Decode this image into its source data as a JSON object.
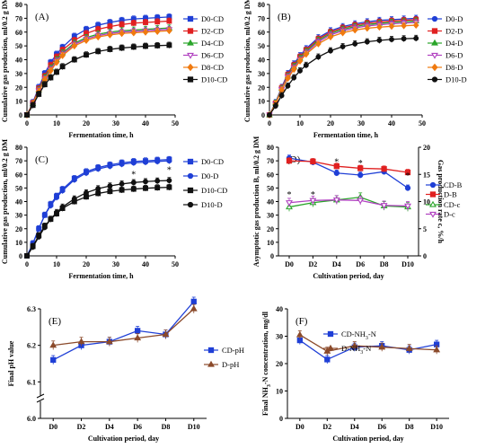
{
  "chart_data": [
    {
      "type": "line",
      "panel": "(A)",
      "xlabel": "Fermentation time, h",
      "ylabel": "Cumulative gas production, ml/0.2 g DM",
      "xlim": [
        0,
        50
      ],
      "ylim": [
        0,
        80
      ],
      "xticks": [
        0,
        10,
        20,
        30,
        40,
        50
      ],
      "yticks": [
        0,
        10,
        20,
        30,
        40,
        50,
        60,
        70,
        80
      ],
      "x": [
        0,
        2,
        4,
        6,
        8,
        10,
        12,
        16,
        20,
        24,
        28,
        32,
        36,
        40,
        44,
        48
      ],
      "legend_position": "right",
      "series": [
        {
          "name": "D0-CD",
          "color": "#1f3fd6",
          "marker": "square",
          "filled": true,
          "values": [
            0,
            9,
            20,
            30,
            38,
            44,
            49,
            57,
            62,
            65,
            67,
            68.5,
            69.5,
            70,
            70.5,
            71
          ]
        },
        {
          "name": "D2-CD",
          "color": "#e02020",
          "marker": "square",
          "filled": true,
          "values": [
            0,
            8.5,
            19,
            28,
            36,
            42,
            47,
            54,
            59,
            62,
            64,
            65.5,
            66.5,
            67,
            67.5,
            68
          ]
        },
        {
          "name": "D4-CD",
          "color": "#2aa52a",
          "marker": "triangle",
          "filled": true,
          "values": [
            0,
            8,
            18,
            27,
            34,
            40,
            45,
            52,
            56,
            58.5,
            60,
            61,
            61.5,
            62,
            62.5,
            63
          ]
        },
        {
          "name": "D6-CD",
          "color": "#b040c0",
          "marker": "triangle-down",
          "filled": false,
          "values": [
            0,
            8,
            17.5,
            26,
            33,
            39,
            44,
            51,
            55,
            57.5,
            59,
            60,
            60.5,
            61,
            61.5,
            62
          ]
        },
        {
          "name": "D8-CD",
          "color": "#f07a10",
          "marker": "diamond",
          "filled": true,
          "values": [
            0,
            8,
            17,
            25.5,
            32,
            38,
            43,
            50,
            54,
            56.5,
            58,
            59,
            59.5,
            60,
            60.5,
            61
          ]
        },
        {
          "name": "D10-CD",
          "color": "#111111",
          "marker": "square",
          "filled": true,
          "values": [
            0,
            7,
            15,
            22,
            27,
            31,
            35,
            40,
            43.5,
            46,
            47.5,
            48.5,
            49.2,
            49.8,
            50.2,
            50.5
          ]
        }
      ]
    },
    {
      "type": "line",
      "panel": "(B)",
      "xlabel": "Fermentation time, h",
      "ylabel": "Cumulative gas production, ml/0.2 g DM",
      "xlim": [
        0,
        50
      ],
      "ylim": [
        0,
        80
      ],
      "xticks": [
        0,
        10,
        20,
        30,
        40,
        50
      ],
      "yticks": [
        0,
        10,
        20,
        30,
        40,
        50,
        60,
        70,
        80
      ],
      "x": [
        0,
        2,
        4,
        6,
        8,
        10,
        12,
        16,
        20,
        24,
        28,
        32,
        36,
        40,
        44,
        48
      ],
      "legend_position": "right",
      "series": [
        {
          "name": "D0-D",
          "color": "#1f3fd6",
          "marker": "circle",
          "filled": true,
          "values": [
            0,
            9,
            20,
            30,
            37,
            43,
            48,
            56,
            61,
            64,
            66,
            67.5,
            68.5,
            69,
            69.5,
            70
          ]
        },
        {
          "name": "D2-D",
          "color": "#e02020",
          "marker": "square",
          "filled": true,
          "values": [
            0,
            8.5,
            19.5,
            29,
            36,
            42,
            47,
            55,
            60,
            63,
            65,
            66.5,
            67.3,
            68,
            68.5,
            69
          ]
        },
        {
          "name": "D4-D",
          "color": "#2aa52a",
          "marker": "triangle",
          "filled": true,
          "values": [
            0,
            8.5,
            19,
            28,
            35,
            41,
            46,
            54,
            59,
            62,
            64,
            65.5,
            66.3,
            67,
            67.5,
            68
          ]
        },
        {
          "name": "D6-D",
          "color": "#b040c0",
          "marker": "triangle-down",
          "filled": false,
          "values": [
            0,
            8,
            18.5,
            27.5,
            34,
            40,
            45,
            53,
            58,
            61,
            63,
            64.5,
            65.3,
            66,
            66.5,
            67
          ]
        },
        {
          "name": "D8-D",
          "color": "#f07a10",
          "marker": "diamond",
          "filled": true,
          "values": [
            0,
            8,
            18,
            26.5,
            33,
            39,
            44,
            51.5,
            56.5,
            59.5,
            61.5,
            62.8,
            63.6,
            64.2,
            64.6,
            65
          ]
        },
        {
          "name": "D10-D",
          "color": "#111111",
          "marker": "circle",
          "filled": true,
          "values": [
            0,
            6.5,
            14,
            21,
            27,
            32,
            36,
            42,
            46.5,
            49.5,
            51.5,
            53,
            54,
            54.7,
            55.2,
            55.5
          ]
        }
      ]
    },
    {
      "type": "line",
      "panel": "(C)",
      "xlabel": "Fermentation time, h",
      "ylabel": "Cumulative gas production, ml/0.2 g DM",
      "xlim": [
        0,
        50
      ],
      "ylim": [
        0,
        80
      ],
      "xticks": [
        0,
        10,
        20,
        30,
        40,
        50
      ],
      "yticks": [
        0,
        10,
        20,
        30,
        40,
        50,
        60,
        70,
        80
      ],
      "x": [
        0,
        2,
        4,
        6,
        8,
        10,
        12,
        16,
        20,
        24,
        28,
        32,
        36,
        40,
        44,
        48
      ],
      "legend_position": "right",
      "annotations": [
        {
          "text": "*",
          "x": 36,
          "y": 58
        },
        {
          "text": "*",
          "x": 48,
          "y": 61
        }
      ],
      "series": [
        {
          "name": "D0-CD",
          "color": "#1f3fd6",
          "marker": "square",
          "filled": true,
          "values": [
            0,
            9,
            20,
            30,
            38,
            44,
            49,
            57,
            62,
            65,
            67,
            68.5,
            69.5,
            70,
            70.5,
            71
          ]
        },
        {
          "name": "D0-D",
          "color": "#1f3fd6",
          "marker": "circle",
          "filled": true,
          "values": [
            0,
            9,
            20,
            30,
            37,
            43,
            48,
            56,
            61,
            64,
            66,
            67.5,
            68.5,
            69,
            69.5,
            70
          ]
        },
        {
          "name": "D10-CD",
          "color": "#111111",
          "marker": "square",
          "filled": true,
          "values": [
            0,
            7,
            15,
            22,
            27,
            31,
            35,
            40,
            43.5,
            46,
            47.5,
            48.5,
            49.2,
            49.8,
            50.2,
            50.5
          ]
        },
        {
          "name": "D10-D",
          "color": "#111111",
          "marker": "circle",
          "filled": true,
          "values": [
            0,
            6.5,
            14,
            21,
            27,
            32,
            36,
            42,
            46.5,
            49.5,
            51.5,
            53,
            54,
            54.7,
            55.2,
            55.5
          ]
        }
      ]
    },
    {
      "type": "line",
      "panel": "(D)",
      "xlabel": "Cultivation period, day",
      "ylabel": "Asymptotic gas production B, ml/0.2 g DM",
      "ylabel_right": "Gas production rate c, %/h",
      "categories": [
        "D0",
        "D2",
        "D4",
        "D6",
        "D8",
        "D10"
      ],
      "ylim": [
        0,
        80
      ],
      "yticks": [
        0,
        10,
        20,
        30,
        40,
        50,
        60,
        70,
        80
      ],
      "ylim_right": [
        0,
        20
      ],
      "yticks_right": [
        0,
        5,
        10,
        15,
        20
      ],
      "legend_position": "right",
      "annotations": [
        {
          "text": "*",
          "x": "D4",
          "y": 67
        },
        {
          "text": "*",
          "x": "D6",
          "y": 66
        },
        {
          "text": "*",
          "x": "D10",
          "y": 57
        },
        {
          "text": "*",
          "x": "D0",
          "y": 43
        },
        {
          "text": "*",
          "x": "D2",
          "y": 43
        }
      ],
      "series": [
        {
          "name": "CD-B",
          "axis": "left",
          "color": "#1f3fd6",
          "marker": "circle",
          "filled": true,
          "values": [
            72,
            69,
            61,
            59.5,
            62,
            50
          ]
        },
        {
          "name": "D-B",
          "axis": "left",
          "color": "#e02020",
          "marker": "square",
          "filled": true,
          "values": [
            70,
            69.5,
            66,
            64.5,
            64,
            61.5
          ]
        },
        {
          "name": "CD-c",
          "axis": "right",
          "color": "#2aa52a",
          "marker": "triangle",
          "filled": false,
          "values": [
            9,
            9.8,
            10.3,
            10.8,
            9.2,
            9
          ]
        },
        {
          "name": "D-c",
          "axis": "right",
          "color": "#b040c0",
          "marker": "triangle-down",
          "filled": false,
          "values": [
            9.8,
            10.2,
            10.3,
            10.2,
            9.3,
            9.2
          ]
        }
      ]
    },
    {
      "type": "line",
      "panel": "(E)",
      "xlabel": "Cultivation period, day",
      "ylabel": "Final pH value",
      "categories": [
        "D0",
        "D2",
        "D4",
        "D6",
        "D8",
        "D10"
      ],
      "ylim": [
        6.0,
        6.3
      ],
      "yticks": [
        6.0,
        6.1,
        6.2,
        6.3
      ],
      "axis_break": true,
      "legend_position": "right",
      "series": [
        {
          "name": "CD-pH",
          "color": "#1f3fd6",
          "marker": "square",
          "filled": true,
          "values": [
            6.16,
            6.2,
            6.21,
            6.24,
            6.23,
            6.32
          ]
        },
        {
          "name": "D-pH",
          "color": "#8b4a2b",
          "marker": "triangle",
          "filled": true,
          "values": [
            6.2,
            6.21,
            6.21,
            6.22,
            6.23,
            6.3
          ]
        }
      ]
    },
    {
      "type": "line",
      "panel": "(F)",
      "xlabel": "Cultivation period, day",
      "ylabel": "Final NH3-N concentration, mg/dl",
      "categories": [
        "D0",
        "D2",
        "D4",
        "D6",
        "D8",
        "D10"
      ],
      "ylim": [
        0,
        40
      ],
      "yticks": [
        0,
        10,
        20,
        30,
        40
      ],
      "legend_position": "right",
      "series": [
        {
          "name": "CD-NH3-N",
          "color": "#1f3fd6",
          "marker": "square",
          "filled": true,
          "values": [
            28.5,
            21.5,
            26,
            26.5,
            25,
            27
          ]
        },
        {
          "name": "D-NH3-N",
          "color": "#8b4a2b",
          "marker": "triangle",
          "filled": true,
          "values": [
            30.5,
            24.5,
            26.5,
            26,
            25.5,
            25
          ]
        }
      ]
    }
  ]
}
